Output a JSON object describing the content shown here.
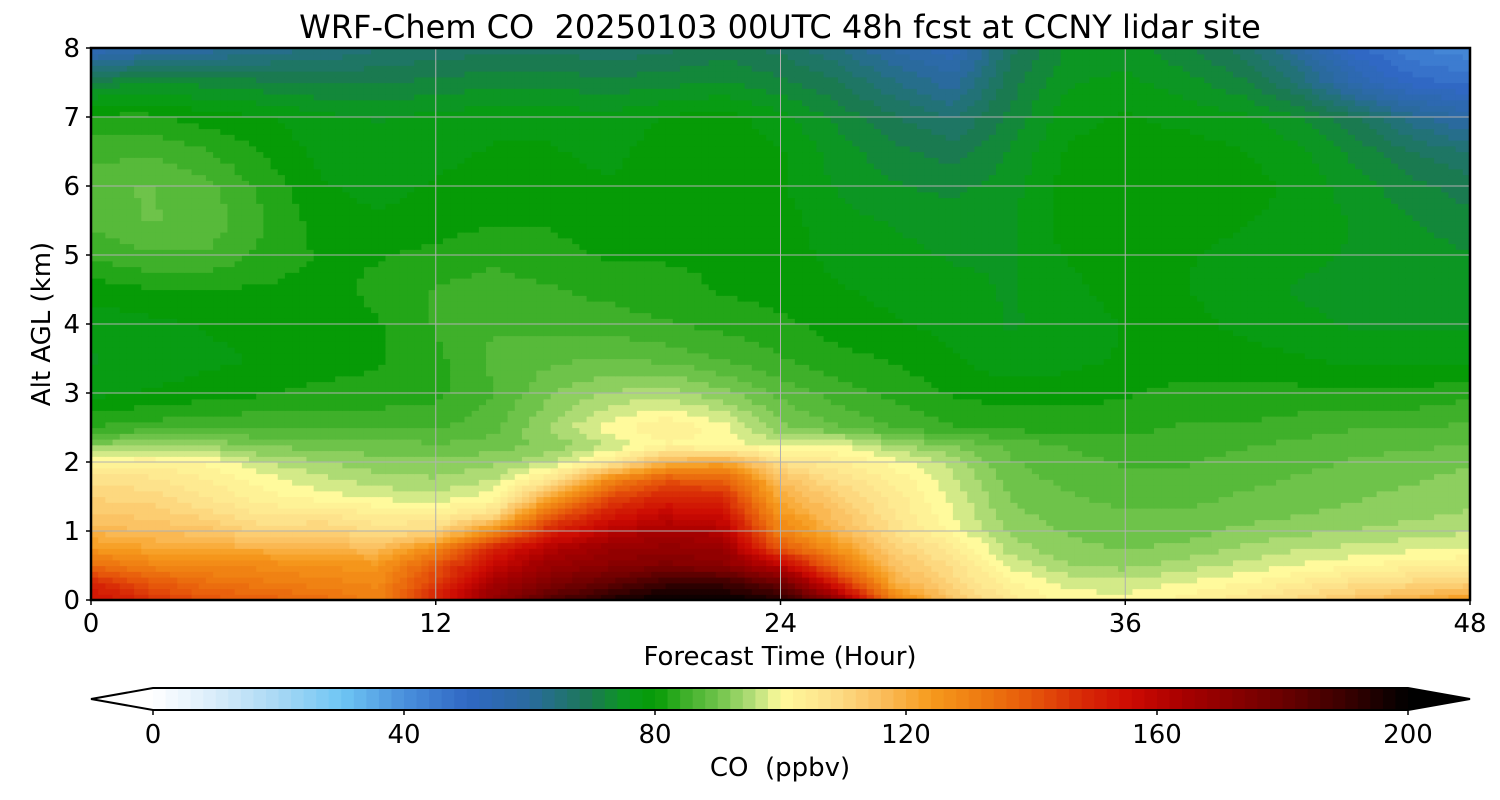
{
  "chart_data": {
    "type": "heatmap",
    "title": "WRF-Chem CO  20250103 00UTC 48h fcst at CCNY lidar site",
    "xlabel": "Forecast Time (Hour)",
    "ylabel": "Alt AGL (km)",
    "xlim": [
      0,
      48
    ],
    "ylim": [
      0,
      8
    ],
    "xticks": [
      0,
      12,
      24,
      36,
      48
    ],
    "yticks": [
      0,
      1,
      2,
      3,
      4,
      5,
      6,
      7,
      8
    ],
    "grid": true,
    "colorbar": {
      "label": "CO  (ppbv)",
      "range": [
        0,
        200
      ],
      "ticks": [
        0,
        40,
        80,
        120,
        160,
        200
      ],
      "extend": "both",
      "orientation": "horizontal",
      "placement": "bottom",
      "colors": {
        "stops": [
          0,
          10,
          20,
          30,
          40,
          50,
          60,
          70,
          76,
          80,
          85,
          90,
          96,
          100,
          108,
          116,
          124,
          132,
          140,
          148,
          156,
          164,
          172,
          180,
          190,
          200
        ],
        "hex": [
          "#ffffff",
          "#d8ecfa",
          "#a8d8f4",
          "#6fc6f4",
          "#4a90dc",
          "#3068c4",
          "#2a6a9e",
          "#1a7a50",
          "#099c1a",
          "#069b06",
          "#3fb02a",
          "#6ec34a",
          "#b9e07c",
          "#fffa9c",
          "#fde08a",
          "#fbbf5e",
          "#f69a1c",
          "#ee7a10",
          "#e6560a",
          "#d82a06",
          "#cc0a02",
          "#a80000",
          "#8a0000",
          "#6a0000",
          "#3a0000",
          "#000000"
        ]
      }
    },
    "x": [
      0,
      2,
      4,
      6,
      8,
      10,
      12,
      14,
      16,
      18,
      20,
      22,
      24,
      26,
      28,
      30,
      32,
      34,
      36,
      38,
      40,
      42,
      44,
      46,
      48
    ],
    "y": [
      0,
      0.25,
      0.5,
      0.75,
      1,
      1.25,
      1.5,
      1.75,
      2,
      2.25,
      2.5,
      3,
      3.5,
      4,
      4.5,
      5,
      5.5,
      6,
      6.5,
      7,
      7.5,
      8
    ],
    "z": [
      [
        155,
        148,
        140,
        138,
        135,
        130,
        150,
        170,
        185,
        195,
        200,
        200,
        195,
        170,
        130,
        115,
        105,
        100,
        100,
        102,
        105,
        110,
        115,
        120,
        125
      ],
      [
        150,
        140,
        135,
        132,
        130,
        128,
        145,
        165,
        175,
        182,
        190,
        190,
        180,
        150,
        120,
        110,
        102,
        98,
        97,
        99,
        101,
        104,
        108,
        110,
        112
      ],
      [
        135,
        130,
        128,
        128,
        126,
        125,
        140,
        158,
        168,
        172,
        175,
        172,
        160,
        135,
        115,
        108,
        98,
        94,
        93,
        95,
        97,
        99,
        101,
        103,
        104
      ],
      [
        125,
        122,
        120,
        120,
        118,
        117,
        128,
        150,
        162,
        168,
        170,
        168,
        140,
        125,
        112,
        105,
        95,
        92,
        91,
        92,
        94,
        96,
        97,
        98,
        99
      ],
      [
        118,
        116,
        115,
        110,
        112,
        108,
        110,
        128,
        150,
        160,
        165,
        162,
        130,
        118,
        108,
        100,
        93,
        91,
        90,
        90,
        92,
        93,
        94,
        95,
        96
      ],
      [
        114,
        113,
        110,
        106,
        106,
        104,
        103,
        108,
        138,
        152,
        158,
        155,
        125,
        115,
        106,
        99,
        92,
        90,
        89,
        89,
        90,
        91,
        92,
        93,
        94
      ],
      [
        111,
        110,
        106,
        102,
        100,
        98,
        97,
        100,
        120,
        142,
        150,
        148,
        120,
        112,
        105,
        98,
        91,
        89,
        88,
        88,
        89,
        90,
        91,
        92,
        93
      ],
      [
        108,
        107,
        104,
        100,
        97,
        95,
        94,
        96,
        106,
        128,
        140,
        138,
        116,
        108,
        103,
        97,
        90,
        88,
        87,
        87,
        88,
        89,
        90,
        91,
        92
      ],
      [
        102,
        103,
        101,
        96,
        94,
        92,
        92,
        93,
        96,
        104,
        118,
        122,
        108,
        104,
        100,
        95,
        89,
        87,
        86,
        86,
        87,
        88,
        89,
        90,
        91
      ],
      [
        92,
        94,
        93,
        91,
        90,
        90,
        89,
        90,
        92,
        96,
        101,
        100,
        98,
        99,
        94,
        91,
        88,
        86,
        85,
        85,
        86,
        87,
        88,
        88,
        89
      ],
      [
        84,
        85,
        86,
        86,
        86,
        86,
        86,
        88,
        94,
        100,
        104,
        100,
        92,
        89,
        86,
        84,
        83,
        83,
        83,
        84,
        84,
        85,
        86,
        86,
        87
      ],
      [
        78,
        79,
        80,
        81,
        82,
        82,
        83,
        86,
        91,
        94,
        95,
        92,
        88,
        85,
        83,
        81,
        80,
        80,
        81,
        82,
        82,
        82,
        82,
        82,
        83
      ],
      [
        76,
        77,
        78,
        79,
        80,
        81,
        83,
        87,
        88,
        89,
        88,
        86,
        84,
        82,
        81,
        79,
        77,
        78,
        79,
        80,
        80,
        79,
        78,
        78,
        78
      ],
      [
        77,
        78,
        79,
        80,
        80,
        81,
        84,
        86,
        85,
        85,
        84,
        83,
        82,
        80,
        79,
        78,
        76,
        77,
        79,
        80,
        78,
        77,
        76,
        76,
        76
      ],
      [
        80,
        81,
        81,
        81,
        80,
        82,
        84,
        85,
        84,
        83,
        82,
        81,
        80,
        79,
        78,
        77,
        76,
        78,
        80,
        79,
        77,
        76,
        75,
        75,
        75
      ],
      [
        84,
        86,
        86,
        83,
        81,
        81,
        82,
        83,
        82,
        81,
        81,
        81,
        80,
        78,
        77,
        76,
        76,
        79,
        80,
        79,
        78,
        77,
        76,
        75,
        74
      ],
      [
        87,
        89,
        88,
        84,
        80,
        79,
        80,
        81,
        81,
        80,
        80,
        81,
        80,
        77,
        76,
        75,
        76,
        80,
        81,
        80,
        79,
        78,
        76,
        74,
        72
      ],
      [
        88,
        89,
        87,
        83,
        79,
        78,
        79,
        80,
        80,
        79,
        80,
        81,
        79,
        76,
        74,
        73,
        75,
        80,
        81,
        80,
        80,
        78,
        75,
        72,
        70
      ],
      [
        85,
        86,
        84,
        81,
        78,
        77,
        78,
        79,
        79,
        78,
        80,
        81,
        79,
        75,
        72,
        70,
        74,
        79,
        80,
        80,
        79,
        77,
        73,
        69,
        66
      ],
      [
        82,
        82,
        80,
        79,
        77,
        76,
        77,
        78,
        78,
        77,
        79,
        80,
        77,
        73,
        69,
        66,
        72,
        78,
        79,
        78,
        77,
        74,
        69,
        62,
        58
      ],
      [
        72,
        74,
        73,
        72,
        71,
        71,
        72,
        73,
        73,
        72,
        73,
        74,
        72,
        69,
        64,
        60,
        70,
        76,
        77,
        75,
        72,
        66,
        56,
        50,
        48
      ],
      [
        54,
        58,
        60,
        62,
        64,
        66,
        67,
        68,
        68,
        67,
        68,
        70,
        68,
        64,
        58,
        54,
        68,
        74,
        75,
        72,
        68,
        60,
        50,
        44,
        42
      ]
    ]
  }
}
